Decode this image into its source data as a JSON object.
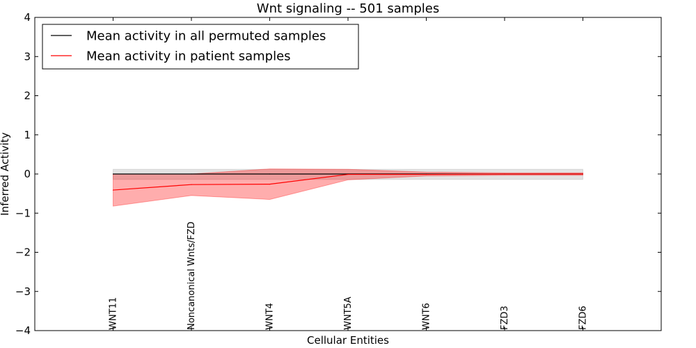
{
  "chart_data": {
    "type": "line",
    "title": "Wnt signaling -- 501 samples",
    "xlabel": "Cellular Entities",
    "ylabel": "Inferred Activity",
    "ylim": [
      -4,
      4
    ],
    "yticks": [
      4,
      3,
      2,
      1,
      0,
      -1,
      -2,
      -3,
      -4
    ],
    "ytick_labels": [
      "4",
      "3",
      "2",
      "1",
      "0",
      "−1",
      "−2",
      "−3",
      "−4"
    ],
    "xlim": [
      -1,
      7
    ],
    "categories": [
      "WNT11",
      "Noncanonical Wnts/FZD",
      "WNT4",
      "WNT5A",
      "WNT6",
      "FZD3",
      "FZD6"
    ],
    "series": [
      {
        "name": "Mean activity in all permuted samples",
        "color": "#000000",
        "band_color": "#808080",
        "values": [
          0,
          0,
          0,
          0,
          0,
          0,
          0
        ],
        "lower": [
          -0.14,
          -0.14,
          -0.14,
          -0.14,
          -0.14,
          -0.14,
          -0.14
        ],
        "upper": [
          0.12,
          0.12,
          0.12,
          0.12,
          0.12,
          0.12,
          0.12
        ]
      },
      {
        "name": "Mean activity in patient samples",
        "color": "#ff0000",
        "band_color": "#ff0000",
        "values": [
          -0.41,
          -0.27,
          -0.26,
          -0.01,
          -0.01,
          0.0,
          0.0
        ],
        "lower": [
          -0.82,
          -0.55,
          -0.65,
          -0.15,
          -0.05,
          -0.03,
          -0.03
        ],
        "upper": [
          0.0,
          0.0,
          0.13,
          0.12,
          0.05,
          0.03,
          0.03
        ]
      }
    ],
    "legend_position": "top-left",
    "grid": false
  }
}
